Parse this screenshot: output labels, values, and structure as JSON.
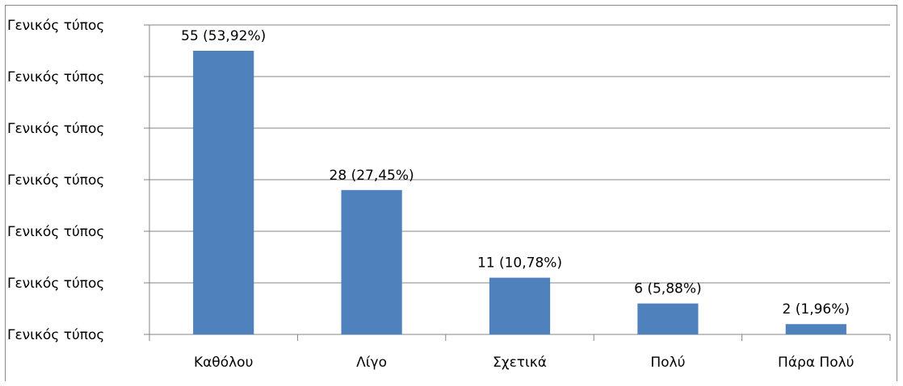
{
  "chart_data": {
    "type": "bar",
    "categories": [
      "Καθόλου",
      "Λίγο",
      "Σχετικά",
      "Πολύ",
      "Πάρα Πολύ"
    ],
    "values": [
      55,
      28,
      11,
      6,
      2
    ],
    "data_labels": [
      "55 (53,92%)",
      "28 (27,45%)",
      "11 (10,78%)",
      "6 (5,88%)",
      "2 (1,96%)"
    ],
    "y_tick_labels": [
      "Γενικός τύπος",
      "Γενικός τύπος",
      "Γενικός τύπος",
      "Γενικός τύπος",
      "Γενικός τύπος",
      "Γενικός τύπος",
      "Γενικός τύπος"
    ],
    "ylim": [
      0,
      60
    ],
    "y_tick_step": 10,
    "grid": true,
    "legend": "none",
    "bar_color": "#4F81BD",
    "grid_color": "#868686"
  }
}
